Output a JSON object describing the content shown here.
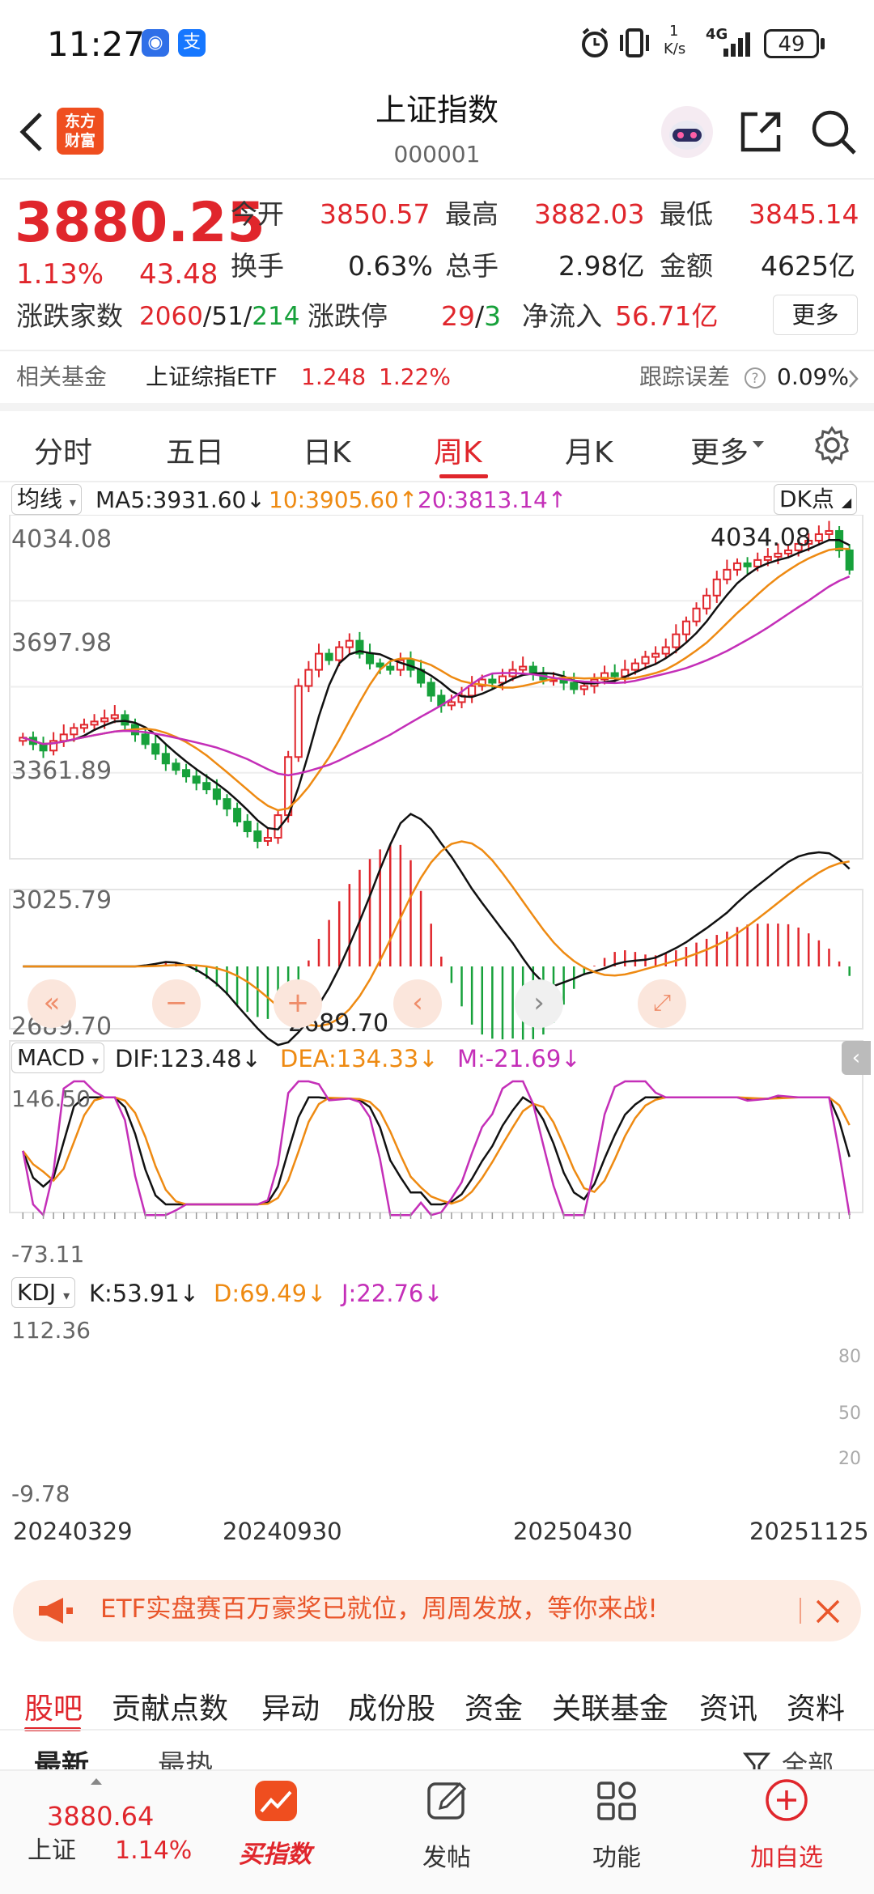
{
  "status": {
    "time": "11:27",
    "net_speed_top": "1",
    "net_speed_unit": "K/s",
    "network": "4G",
    "battery": "49"
  },
  "header": {
    "logo_line1": "东方",
    "logo_line2": "财富",
    "title": "上证指数",
    "code": "000001"
  },
  "quote": {
    "price": "3880.25",
    "change_pct": "1.13%",
    "change_pts": "43.48",
    "rows": [
      [
        {
          "label": "今开",
          "value": "3850.57",
          "color": "red"
        },
        {
          "label": "最高",
          "value": "3882.03",
          "color": "red"
        },
        {
          "label": "最低",
          "value": "3845.14",
          "color": "red"
        }
      ],
      [
        {
          "label": "换手",
          "value": "0.63%",
          "color": "dark"
        },
        {
          "label": "总手",
          "value": "2.98亿",
          "color": "dark"
        },
        {
          "label": "金额",
          "value": "4625亿",
          "color": "dark"
        }
      ]
    ],
    "breadth_label": "涨跌家数",
    "breadth_up": "2060",
    "breadth_flat": "51",
    "breadth_down": "214",
    "limit_label": "涨跌停",
    "limit_up": "29",
    "limit_down": "3",
    "inflow_label": "净流入",
    "inflow_value": "56.71亿",
    "more_label": "更多"
  },
  "fund": {
    "label": "相关基金",
    "name": "上证综指ETF",
    "price": "1.248",
    "pct": "1.22%",
    "tracking_label": "跟踪误差",
    "tracking_value": "0.09%"
  },
  "chart_tabs": [
    "分时",
    "五日",
    "日K",
    "周K",
    "月K",
    "更多"
  ],
  "chart_tabs_active": 3,
  "indicator": {
    "ma_selector": "均线",
    "ma5": "MA5:3931.60↓",
    "ma10": "10:3905.60↑",
    "ma20": "20:3813.14↑",
    "dk_label": "DK点",
    "high_marker": "4034.08",
    "low_marker": "2689.70",
    "macd_selector": "MACD",
    "dif": "DIF:123.48↓",
    "dea": "DEA:134.33↓",
    "m": "M:-21.69↓",
    "kdj_selector": "KDJ",
    "k": "K:53.91↓",
    "d": "D:69.49↓",
    "j": "J:22.76↓"
  },
  "chart_data": [
    {
      "type": "candlestick",
      "name": "price",
      "y_ticks": [
        "4034.08",
        "3697.98",
        "3361.89",
        "3025.79",
        "2689.70"
      ],
      "ylim": [
        2689.7,
        4034.08
      ],
      "high": 4034.08,
      "low": 2689.7,
      "x_ticks": [
        "20240329",
        "20240930",
        "20250430",
        "20251125"
      ],
      "series": [
        {
          "name": "MA5",
          "color": "#111111"
        },
        {
          "name": "MA10",
          "color": "#ee8a12"
        },
        {
          "name": "MA20",
          "color": "#c42fb8"
        }
      ]
    },
    {
      "type": "bar",
      "name": "MACD",
      "y_ticks": [
        "146.50",
        "-73.11"
      ],
      "ylim": [
        -73.11,
        146.5
      ]
    },
    {
      "type": "line",
      "name": "KDJ",
      "y_ticks": [
        "112.36",
        "-9.78"
      ],
      "right_ticks": [
        "80",
        "50",
        "20"
      ],
      "ylim": [
        -9.78,
        112.36
      ]
    }
  ],
  "banner": {
    "text": "ETF实盘赛百万豪奖已就位，周周发放，等你来战!"
  },
  "bottom_tabs": [
    "股吧",
    "贡献点数",
    "异动",
    "成份股",
    "资金",
    "关联基金",
    "资讯",
    "资料"
  ],
  "subtabs": {
    "latest": "最新",
    "hot": "最热",
    "all": "全部"
  },
  "bottom_nav": {
    "index_price": "3880.64",
    "index_name": "上证",
    "index_pct": "1.14%",
    "buy_label": "买指数",
    "post_label": "发帖",
    "func_label": "功能",
    "watch_label": "加自选"
  },
  "colors": {
    "up": "#e0262c",
    "down": "#17a13b",
    "accent": "#e0262c"
  }
}
